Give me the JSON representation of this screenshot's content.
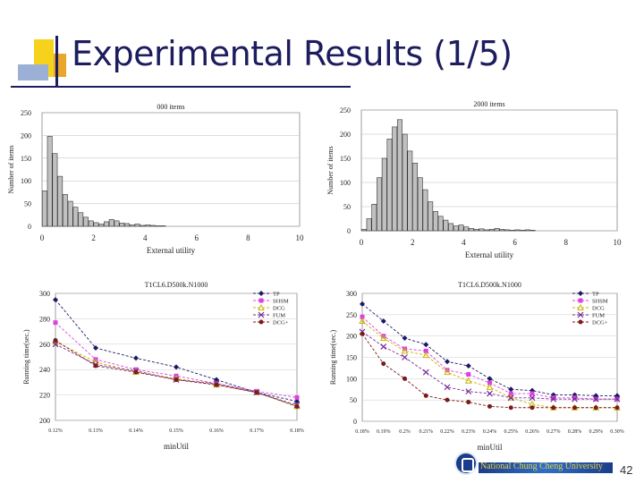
{
  "slide": {
    "title": "Experimental Results (1/5)",
    "page_number": "42",
    "institution": "National Chung Cheng University",
    "colors": {
      "title": "#1c1c5e",
      "deco_yellow": "#f6d21c",
      "deco_orange": "#e8a62a",
      "deco_blue": "#9cb0d6"
    }
  },
  "chart_data": [
    {
      "type": "bar",
      "title": "000 items",
      "xlabel": "External utility",
      "ylabel": "Number of items",
      "ylim": [
        0,
        250
      ],
      "xlim": [
        0,
        10
      ],
      "yticks": [
        "0",
        "50",
        "100",
        "150",
        "200",
        "250"
      ],
      "xticks": [
        "0",
        "2",
        "4",
        "6",
        "8",
        "10"
      ],
      "categories": [
        0.1,
        0.3,
        0.5,
        0.7,
        0.9,
        1.1,
        1.3,
        1.5,
        1.7,
        1.9,
        2.1,
        2.3,
        2.5,
        2.7,
        2.9,
        3.1,
        3.3,
        3.5,
        3.7,
        3.9,
        4.1,
        4.3,
        4.5,
        4.7,
        4.9
      ],
      "values": [
        78,
        198,
        160,
        110,
        70,
        55,
        42,
        30,
        20,
        12,
        8,
        5,
        10,
        15,
        12,
        7,
        6,
        3,
        5,
        2,
        3,
        2,
        1,
        1,
        0
      ]
    },
    {
      "type": "bar",
      "title": "2000 items",
      "xlabel": "External utility",
      "ylabel": "Number of items",
      "ylim": [
        0,
        250
      ],
      "xlim": [
        0,
        10
      ],
      "yticks": [
        "0",
        "50",
        "100",
        "150",
        "200",
        "250"
      ],
      "xticks": [
        "0",
        "2",
        "4",
        "6",
        "8",
        "10"
      ],
      "categories": [
        0.1,
        0.3,
        0.5,
        0.7,
        0.9,
        1.1,
        1.3,
        1.5,
        1.7,
        1.9,
        2.1,
        2.3,
        2.5,
        2.7,
        2.9,
        3.1,
        3.3,
        3.5,
        3.7,
        3.9,
        4.1,
        4.3,
        4.5,
        4.7,
        4.9,
        5.1,
        5.3,
        5.5,
        5.7,
        5.9,
        6.1,
        6.3,
        6.5,
        6.7
      ],
      "values": [
        3,
        25,
        55,
        110,
        150,
        190,
        215,
        230,
        200,
        165,
        140,
        110,
        85,
        60,
        40,
        30,
        22,
        15,
        10,
        12,
        8,
        5,
        3,
        4,
        2,
        3,
        5,
        3,
        2,
        1,
        2,
        1,
        2,
        1
      ]
    },
    {
      "type": "line",
      "title": "T1CL6.D500k.N1000",
      "xlabel": "minUtil",
      "ylabel": "Running time(sec.)",
      "ylim": [
        200,
        300
      ],
      "yticks": [
        "200",
        "220",
        "240",
        "260",
        "280",
        "300"
      ],
      "categories": [
        "0.12%",
        "0.13%",
        "0.14%",
        "0.15%",
        "0.16%",
        "0.17%",
        "0.18%"
      ],
      "legend": [
        "TP",
        "SHSM",
        "DCG",
        "FUM",
        "DCG+"
      ],
      "series": [
        {
          "name": "TP",
          "color": "#1a1a66",
          "marker": "diamond",
          "values": [
            295,
            257,
            249,
            242,
            232,
            222,
            215
          ]
        },
        {
          "name": "SHSM",
          "color": "#e040e0",
          "marker": "square",
          "values": [
            277,
            248,
            240,
            235,
            229,
            223,
            218
          ]
        },
        {
          "name": "DCG",
          "color": "#c8b400",
          "marker": "triangle",
          "values": [
            262,
            246,
            238,
            233,
            228,
            222,
            211
          ]
        },
        {
          "name": "FUM",
          "color": "#7a2a9a",
          "marker": "cross",
          "values": [
            260,
            244,
            239,
            232,
            229,
            222,
            212
          ]
        },
        {
          "name": "DCG+",
          "color": "#7a1a1a",
          "marker": "circle",
          "values": [
            263,
            243,
            238,
            232,
            228,
            222,
            211
          ]
        }
      ]
    },
    {
      "type": "line",
      "title": "T1CL6.D500k.N1000",
      "xlabel": "minUtil",
      "ylabel": "Running time(sec.)",
      "ylim": [
        0,
        300
      ],
      "yticks": [
        "0",
        "50",
        "100",
        "150",
        "200",
        "250",
        "300"
      ],
      "categories": [
        "0.18%",
        "0.19%",
        "0.2%",
        "0.21%",
        "0.22%",
        "0.23%",
        "0.24%",
        "0.25%",
        "0.26%",
        "0.27%",
        "0.28%",
        "0.29%",
        "0.30%"
      ],
      "legend": [
        "TP",
        "SHSM",
        "DCG",
        "FUM",
        "DCG+"
      ],
      "series": [
        {
          "name": "TP",
          "color": "#1a1a66",
          "marker": "diamond",
          "values": [
            275,
            235,
            195,
            180,
            140,
            130,
            100,
            75,
            72,
            62,
            62,
            60,
            60
          ]
        },
        {
          "name": "SHSM",
          "color": "#e040e0",
          "marker": "square",
          "values": [
            245,
            200,
            170,
            165,
            120,
            110,
            90,
            65,
            65,
            55,
            55,
            52,
            52
          ]
        },
        {
          "name": "DCG",
          "color": "#c8b400",
          "marker": "triangle",
          "values": [
            235,
            195,
            165,
            155,
            115,
            95,
            80,
            55,
            40,
            32,
            32,
            32,
            32
          ]
        },
        {
          "name": "FUM",
          "color": "#7a2a9a",
          "marker": "cross",
          "values": [
            210,
            175,
            150,
            115,
            80,
            70,
            65,
            55,
            55,
            52,
            52,
            52,
            52
          ]
        },
        {
          "name": "DCG+",
          "color": "#7a1a1a",
          "marker": "circle",
          "values": [
            205,
            135,
            100,
            60,
            50,
            45,
            35,
            32,
            32,
            32,
            32,
            32,
            32
          ]
        }
      ]
    }
  ]
}
